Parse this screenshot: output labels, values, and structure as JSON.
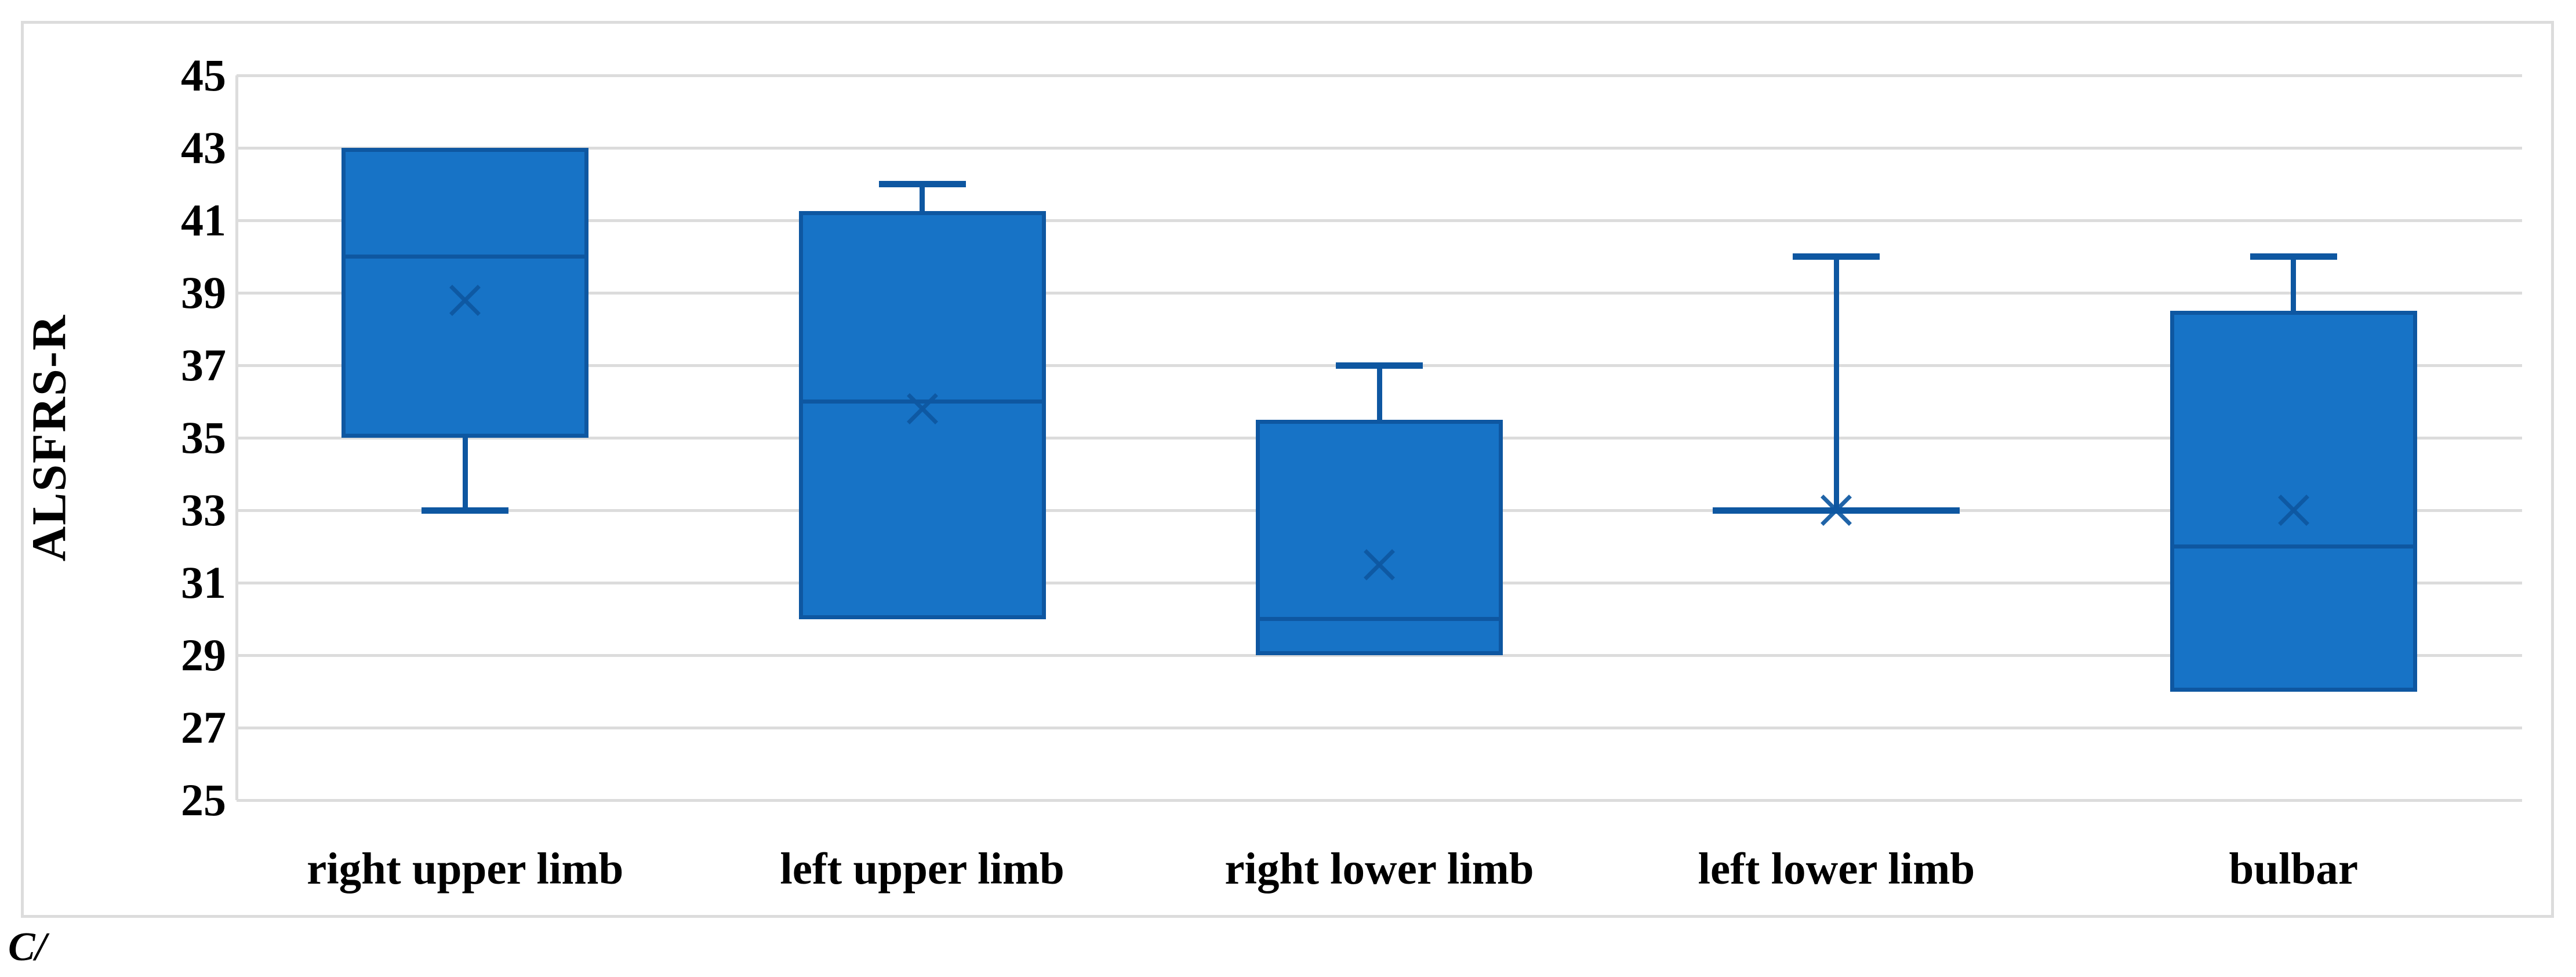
{
  "panel_label": "C/",
  "chart_data": {
    "type": "boxplot",
    "title": "",
    "ylabel": "ALSFRS-R",
    "xlabel": "",
    "ylim": [
      25,
      45
    ],
    "yticks": [
      45,
      43,
      41,
      39,
      37,
      35,
      33,
      31,
      29,
      27,
      25
    ],
    "grid": "horizontal",
    "legend": "none",
    "categories": [
      "right upper limb",
      "left upper limb",
      "right lower limb",
      "left lower limb",
      "bulbar"
    ],
    "series": [
      {
        "name": "right upper limb",
        "min": 33,
        "q1": 35,
        "median": 40,
        "mean": 38.8,
        "q3": 43,
        "max": 43
      },
      {
        "name": "left upper limb",
        "min": 30,
        "q1": 30,
        "median": 36,
        "mean": 35.8,
        "q3": 41.25,
        "max": 42
      },
      {
        "name": "right lower limb",
        "min": 29,
        "q1": 29,
        "median": 30,
        "mean": 31.5,
        "q3": 35.5,
        "max": 37
      },
      {
        "name": "left lower limb",
        "min": 33,
        "q1": 33,
        "median": 33,
        "mean": 33,
        "q3": 33,
        "max": 40
      },
      {
        "name": "bulbar",
        "min": 28,
        "q1": 28,
        "median": 32,
        "mean": 33,
        "q3": 38.5,
        "max": 40
      }
    ],
    "colors": {
      "box_fill": "#1773c6",
      "box_stroke": "#0e57a1",
      "gridline": "#dcdcdc",
      "frame": "#dcdcdc",
      "text": "#000000"
    }
  }
}
